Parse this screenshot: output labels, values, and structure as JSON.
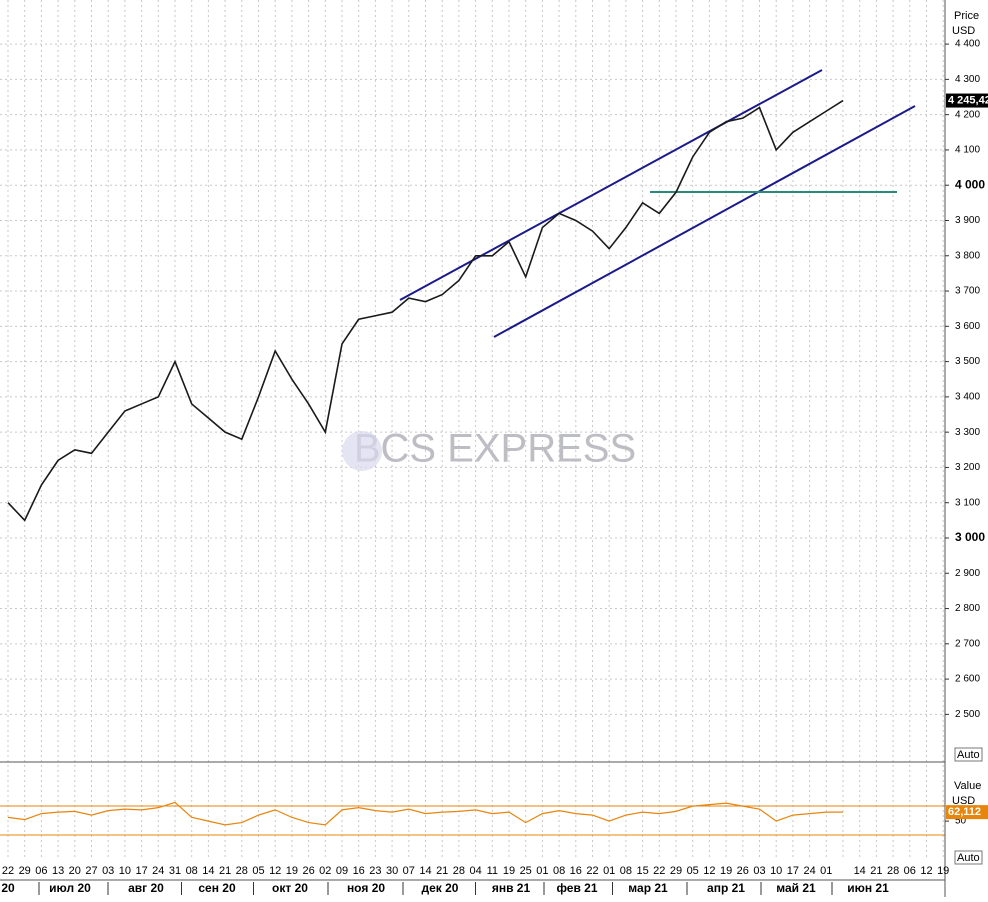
{
  "chart_data": [
    {
      "type": "line",
      "name": "price",
      "axis_title": "Price",
      "axis_unit": "USD",
      "scale_mode": "Auto",
      "last_label": "4 245,42",
      "watermark": "BCS EXPRESS",
      "categories": [
        "22",
        "29",
        "06",
        "13",
        "20",
        "27",
        "03",
        "10",
        "17",
        "24",
        "31",
        "08",
        "14",
        "21",
        "28",
        "05",
        "12",
        "19",
        "26",
        "02",
        "09",
        "16",
        "23",
        "30",
        "07",
        "14",
        "21",
        "28",
        "04",
        "11",
        "19",
        "25",
        "01",
        "08",
        "16",
        "22",
        "01",
        "08",
        "15",
        "22",
        "29",
        "05",
        "12",
        "19",
        "26",
        "03",
        "10",
        "17",
        "24",
        "01",
        null,
        "14",
        "21",
        "28",
        "06",
        "12",
        "19"
      ],
      "months": [
        "20",
        "июл 20",
        "авг 20",
        "сен 20",
        "окт 20",
        "ноя 20",
        "дек 20",
        "янв 21",
        "фев 21",
        "мар 21",
        "апр 21",
        "май 21",
        "июн 21"
      ],
      "color": "#1a1a1a",
      "values": [
        3100,
        3050,
        3150,
        3220,
        3250,
        3240,
        3300,
        3360,
        3380,
        3400,
        3500,
        3380,
        3340,
        3300,
        3280,
        3400,
        3530,
        3450,
        3380,
        3300,
        3550,
        3620,
        3630,
        3640,
        3680,
        3670,
        3690,
        3730,
        3800,
        3800,
        3840,
        3740,
        3880,
        3920,
        3900,
        3870,
        3820,
        3880,
        3950,
        3920,
        3980,
        4080,
        4150,
        4180,
        4190,
        4220,
        4100,
        4150,
        4180,
        4210,
        4240,
        null,
        null,
        null,
        null,
        null,
        null
      ],
      "ylim": [
        2365,
        4525
      ],
      "yticks": [
        {
          "value": 4400,
          "label": "4 400"
        },
        {
          "value": 4300,
          "label": "4 300"
        },
        {
          "value": 4200,
          "label": "4 200"
        },
        {
          "value": 4100,
          "label": "4 100"
        },
        {
          "value": 4000,
          "label": "4 000"
        },
        {
          "value": 3900,
          "label": "3 900"
        },
        {
          "value": 3800,
          "label": "3 800"
        },
        {
          "value": 3700,
          "label": "3 700"
        },
        {
          "value": 3600,
          "label": "3 600"
        },
        {
          "value": 3500,
          "label": "3 500"
        },
        {
          "value": 3400,
          "label": "3 400"
        },
        {
          "value": 3300,
          "label": "3 300"
        },
        {
          "value": 3200,
          "label": "3 200"
        },
        {
          "value": 3100,
          "label": "3 100"
        },
        {
          "value": 3000,
          "label": "3 000"
        },
        {
          "value": 2900,
          "label": "2 900"
        },
        {
          "value": 2800,
          "label": "2 800"
        },
        {
          "value": 2700,
          "label": "2 700"
        },
        {
          "value": 2600,
          "label": "2 600"
        },
        {
          "value": 2500,
          "label": "2 500"
        }
      ],
      "grid": true
    },
    {
      "type": "line",
      "name": "indicator",
      "axis_title": "Value",
      "axis_unit": "USD",
      "scale_mode": "Auto",
      "last_label": "62,112",
      "color": "#e8850c",
      "values": [
        55,
        52,
        60,
        62,
        63,
        58,
        64,
        66,
        65,
        68,
        75,
        55,
        50,
        45,
        48,
        58,
        65,
        55,
        48,
        45,
        65,
        68,
        64,
        62,
        66,
        60,
        62,
        63,
        65,
        60,
        62,
        48,
        60,
        64,
        60,
        58,
        50,
        58,
        62,
        60,
        63,
        70,
        72,
        74,
        70,
        66,
        50,
        58,
        60,
        62,
        62,
        null,
        null,
        null,
        null,
        null,
        null
      ],
      "ylim": [
        -2,
        125
      ],
      "yticks": [
        50
      ],
      "grid": false
    }
  ]
}
